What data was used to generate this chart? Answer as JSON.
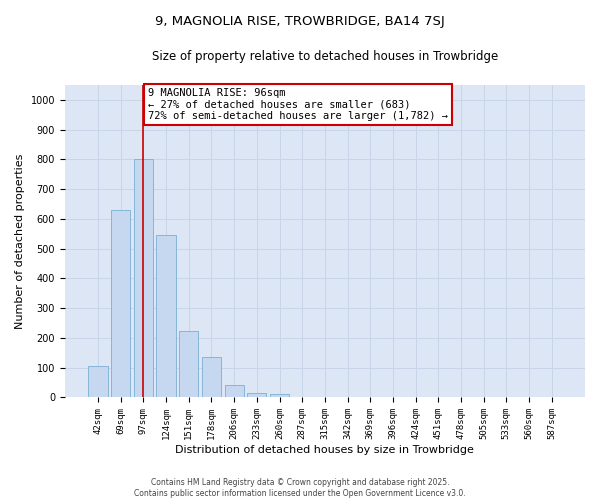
{
  "title_line1": "9, MAGNOLIA RISE, TROWBRIDGE, BA14 7SJ",
  "title_line2": "Size of property relative to detached houses in Trowbridge",
  "xlabel": "Distribution of detached houses by size in Trowbridge",
  "ylabel": "Number of detached properties",
  "categories": [
    "42sqm",
    "69sqm",
    "97sqm",
    "124sqm",
    "151sqm",
    "178sqm",
    "206sqm",
    "233sqm",
    "260sqm",
    "287sqm",
    "315sqm",
    "342sqm",
    "369sqm",
    "396sqm",
    "424sqm",
    "451sqm",
    "478sqm",
    "505sqm",
    "533sqm",
    "560sqm",
    "587sqm"
  ],
  "bar_heights": [
    105,
    630,
    800,
    545,
    222,
    135,
    42,
    15,
    10,
    0,
    0,
    0,
    0,
    0,
    0,
    0,
    0,
    0,
    0,
    0,
    0
  ],
  "bar_color": "#c5d8ef",
  "bar_edge_color": "#7bafd4",
  "vline_x_idx": 2,
  "vline_color": "#cc0000",
  "annotation_text": "9 MAGNOLIA RISE: 96sqm\n← 27% of detached houses are smaller (683)\n72% of semi-detached houses are larger (1,782) →",
  "annotation_box_color": "#cc0000",
  "ylim": [
    0,
    1050
  ],
  "yticks": [
    0,
    100,
    200,
    300,
    400,
    500,
    600,
    700,
    800,
    900,
    1000
  ],
  "grid_color": "#c8d4e8",
  "background_color": "#dce6f5",
  "footer_text": "Contains HM Land Registry data © Crown copyright and database right 2025.\nContains public sector information licensed under the Open Government Licence v3.0.",
  "title_fontsize": 9.5,
  "subtitle_fontsize": 8.5,
  "tick_fontsize": 6.5,
  "ylabel_fontsize": 8,
  "xlabel_fontsize": 8,
  "annotation_fontsize": 7.5,
  "footer_fontsize": 5.5
}
